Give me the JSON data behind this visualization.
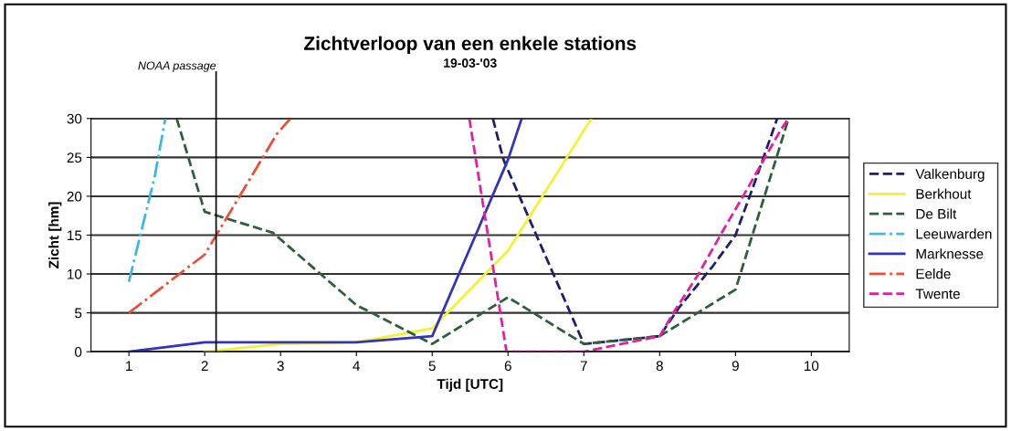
{
  "chart_data": {
    "type": "line",
    "title": "Zichtverloop van een enkele stations",
    "subtitle": "19-03-'03",
    "xlabel": "Tijd [UTC]",
    "ylabel": "Zicht [hm]",
    "xlim": [
      0.5,
      10.5
    ],
    "xticks": [
      1,
      2,
      3,
      4,
      5,
      6,
      7,
      8,
      9,
      10
    ],
    "ylim": [
      0,
      30
    ],
    "yticks": [
      0,
      5,
      10,
      15,
      20,
      25,
      30
    ],
    "grid": "y",
    "legend": "right",
    "marker": "none",
    "ref_lines": [
      {
        "axis": "x",
        "value": 2.15,
        "label": "NOAA passage",
        "color": "#000000",
        "line_style": "solid"
      }
    ],
    "series": [
      {
        "name": "Valkenburg",
        "color": "#1f1f6e",
        "line_style": "dashed",
        "x": [
          5.8,
          5.94,
          7,
          8,
          8.25,
          8.7,
          9,
          9.28,
          9.55
        ],
        "values": [
          30,
          24.7,
          1,
          2,
          5.6,
          11,
          15,
          22.5,
          30
        ]
      },
      {
        "name": "Berkhout",
        "color": "#f2f230",
        "line_style": "solid",
        "x": [
          2,
          3,
          4,
          5,
          6,
          7.1
        ],
        "values": [
          0,
          1,
          1.2,
          3,
          13,
          30
        ]
      },
      {
        "name": "De Bilt",
        "color": "#2e5e3a",
        "line_style": "dashed",
        "x": [
          1.63,
          2,
          2.9,
          4,
          5,
          6,
          7,
          8,
          8.5,
          9,
          9.7
        ],
        "values": [
          30,
          18,
          15.3,
          6,
          1,
          7,
          1,
          2,
          5,
          8,
          30
        ]
      },
      {
        "name": "Leeuwarden",
        "color": "#3cb8e0",
        "line_style": "dashdot",
        "x": [
          1,
          1.34,
          1.48
        ],
        "values": [
          9,
          22.5,
          30
        ]
      },
      {
        "name": "Marknesse",
        "color": "#3333bb",
        "line_style": "solid",
        "x": [
          1,
          2,
          4,
          5,
          6,
          6.18
        ],
        "values": [
          0,
          1.2,
          1.2,
          2,
          24.7,
          30
        ]
      },
      {
        "name": "Eelde",
        "color": "#e8503a",
        "line_style": "dashdot",
        "x": [
          1,
          2,
          2.95,
          3.13
        ],
        "values": [
          5,
          12.5,
          28,
          30
        ]
      },
      {
        "name": "Twente",
        "color": "#e020a0",
        "line_style": "dashed",
        "x": [
          5.49,
          5.98,
          7,
          8,
          8.2,
          8.5,
          8.86,
          9.1,
          9.6,
          9.7
        ],
        "values": [
          30,
          0,
          0,
          2,
          5.3,
          9.8,
          16,
          20,
          28.6,
          30
        ]
      }
    ]
  }
}
